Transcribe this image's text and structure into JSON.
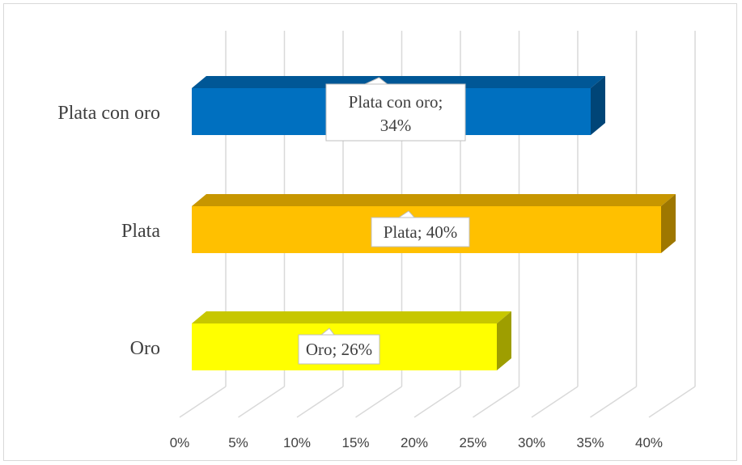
{
  "chart_data": {
    "type": "bar",
    "orientation": "horizontal",
    "three_d": true,
    "categories": [
      "Oro",
      "Plata",
      "Plata con oro"
    ],
    "values": [
      26,
      40,
      34
    ],
    "value_unit": "%",
    "data_labels": [
      "Oro; 26%",
      "Plata; 40%",
      "Plata con oro; 34%"
    ],
    "bar_colors": [
      "#ffff00",
      "#ffc000",
      "#0070c0"
    ],
    "xlim": [
      0,
      40
    ],
    "x_ticks": [
      0,
      5,
      10,
      15,
      20,
      25,
      30,
      35,
      40
    ],
    "x_tick_labels": [
      "0%",
      "5%",
      "10%",
      "15%",
      "20%",
      "25%",
      "30%",
      "35%",
      "40%"
    ],
    "grid": true,
    "legend": "none"
  }
}
